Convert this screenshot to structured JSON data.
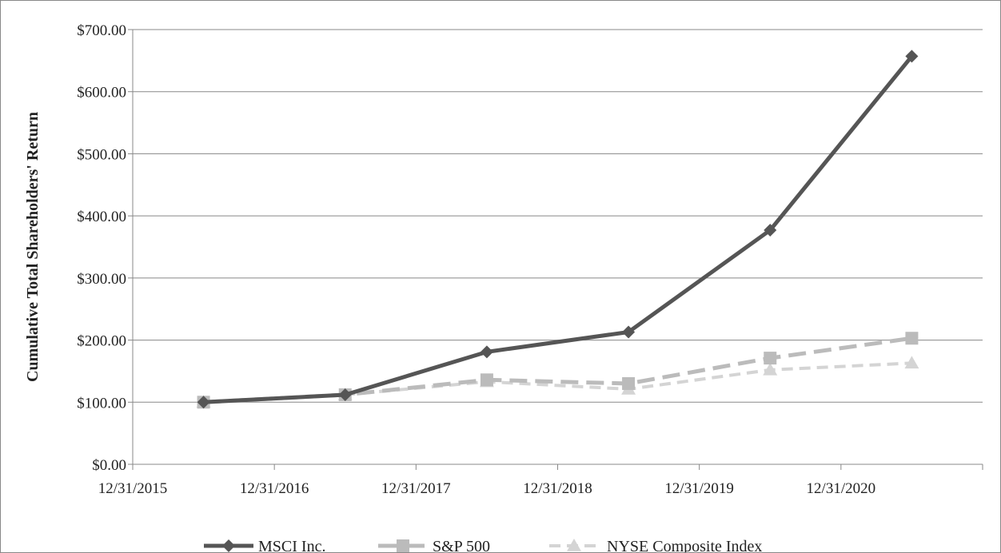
{
  "chart_data": {
    "type": "line",
    "title": "",
    "xlabel": "",
    "ylabel": "Cumulative Total Shareholders' Return",
    "categories": [
      "12/31/2015",
      "12/31/2016",
      "12/31/2017",
      "12/31/2018",
      "12/31/2019",
      "12/31/2020"
    ],
    "ylim": [
      0,
      700
    ],
    "yticks": [
      "$0.00",
      "$100.00",
      "$200.00",
      "$300.00",
      "$400.00",
      "$500.00",
      "$600.00",
      "$700.00"
    ],
    "grid": "horizontal",
    "legend": "bottom-center",
    "series": [
      {
        "name": "MSCI Inc.",
        "values": [
          100,
          112,
          181,
          213,
          377,
          657
        ],
        "color": "#555555",
        "marker": "diamond",
        "dash": "solid"
      },
      {
        "name": "S&P 500",
        "values": [
          100,
          112,
          136,
          130,
          171,
          203
        ],
        "color": "#bbbbbb",
        "marker": "square",
        "dash": "long-dash"
      },
      {
        "name": "NYSE Composite Index",
        "values": [
          100,
          112,
          133,
          121,
          152,
          163
        ],
        "color": "#d4d4d4",
        "marker": "triangle",
        "dash": "dash"
      }
    ]
  }
}
